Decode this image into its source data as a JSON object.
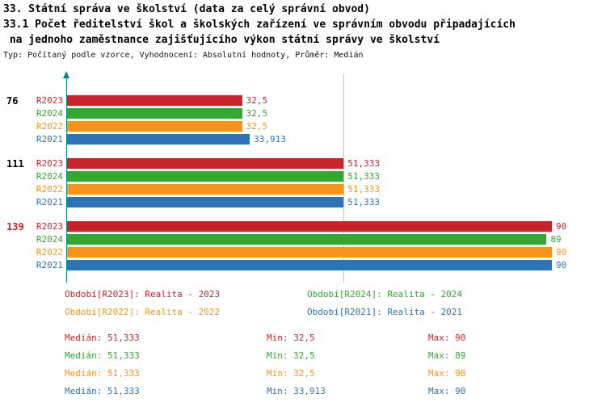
{
  "title": {
    "line1": "33. Státní správa ve školství (data za celý správní obvod)",
    "line2": "33.1 Počet ředitelství škol a školských zařízení ve správním obvodu připadajících",
    "line3": " na jednoho zaměstnance zajišťujícího výkon státní správy ve školství",
    "subtitle": "Typ: Počítaný podle vzorce, Vyhodnocení: Absolutní hodnoty, Průměr: Medián"
  },
  "series_colors": {
    "R2023": "#c9242b",
    "R2024": "#36a632",
    "R2022": "#f7941d",
    "R2021": "#2e74b5"
  },
  "axis_color": "#008b8b",
  "median_line_color": "#a6cee3",
  "chart_data": {
    "type": "bar",
    "orientation": "horizontal",
    "title": "33.1 Počet ředitelství škol a školských zařízení ve správním obvodu připadajících na jednoho zaměstnance zajišťujícího výkon státní správy ve školství",
    "xlim": [
      0,
      90
    ],
    "median_line_value": 51.333,
    "groups": [
      {
        "label": "76",
        "label_color": "#000000",
        "bars": [
          {
            "series": "R2023",
            "value": 32.5,
            "display": "32,5"
          },
          {
            "series": "R2024",
            "value": 32.5,
            "display": "32,5"
          },
          {
            "series": "R2022",
            "value": 32.5,
            "display": "32,5"
          },
          {
            "series": "R2021",
            "value": 33.913,
            "display": "33,913"
          }
        ]
      },
      {
        "label": "111",
        "label_color": "#000000",
        "bars": [
          {
            "series": "R2023",
            "value": 51.333,
            "display": "51,333"
          },
          {
            "series": "R2024",
            "value": 51.333,
            "display": "51,333"
          },
          {
            "series": "R2022",
            "value": 51.333,
            "display": "51,333"
          },
          {
            "series": "R2021",
            "value": 51.333,
            "display": "51,333"
          }
        ]
      },
      {
        "label": "139",
        "label_color": "#c9242b",
        "bars": [
          {
            "series": "R2023",
            "value": 90,
            "display": "90"
          },
          {
            "series": "R2024",
            "value": 89,
            "display": "89"
          },
          {
            "series": "R2022",
            "value": 90,
            "display": "90"
          },
          {
            "series": "R2021",
            "value": 90,
            "display": "90"
          }
        ]
      }
    ]
  },
  "legend": [
    {
      "series": "R2023",
      "label": "Období[R2023]: Realita - 2023"
    },
    {
      "series": "R2024",
      "label": "Období[R2024]: Realita - 2024"
    },
    {
      "series": "R2022",
      "label": "Období[R2022]: Realita - 2022"
    },
    {
      "series": "R2021",
      "label": "Období[R2021]: Realita - 2021"
    }
  ],
  "stats": [
    {
      "series": "R2023",
      "median": "Medián: 51,333",
      "min": "Min: 32,5",
      "max": "Max: 90"
    },
    {
      "series": "R2024",
      "median": "Medián: 51,333",
      "min": "Min: 32,5",
      "max": "Max: 89"
    },
    {
      "series": "R2022",
      "median": "Medián: 51,333",
      "min": "Min: 32,5",
      "max": "Max: 90"
    },
    {
      "series": "R2021",
      "median": "Medián: 51,333",
      "min": "Min: 33,913",
      "max": "Max: 90"
    }
  ]
}
